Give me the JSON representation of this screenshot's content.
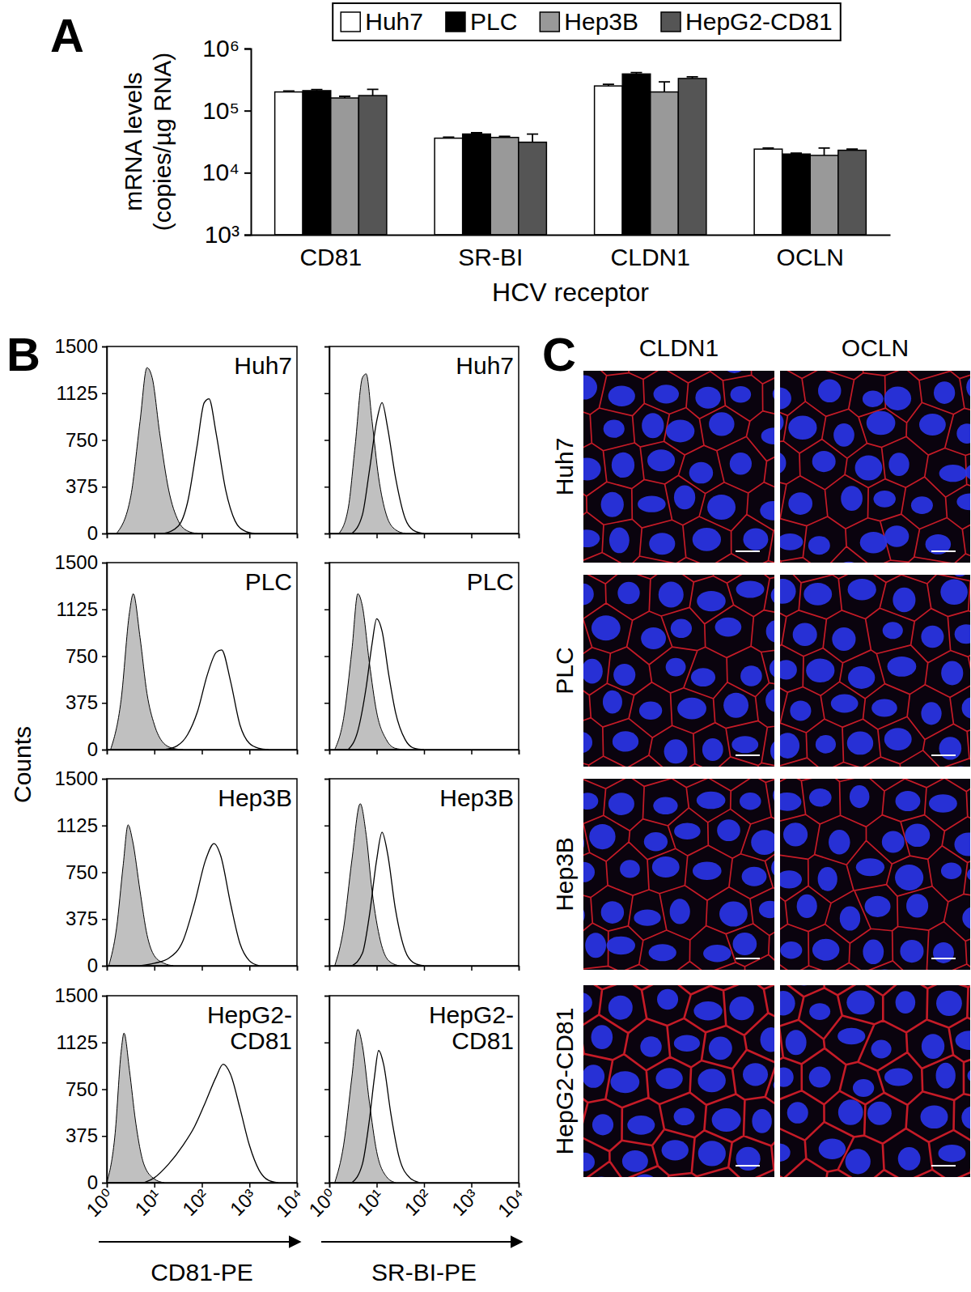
{
  "chart_data": [
    {
      "type": "bar",
      "log": "y",
      "legend": "top",
      "x_label": "HCV receptor",
      "y_label": [
        "mRNA levels",
        "(copies/µg RNA)"
      ],
      "categories": [
        "CD81",
        "SR-BI",
        "CLDN1",
        "OCLN"
      ],
      "series": [
        {
          "name": "Huh7",
          "color": "#ffffff",
          "values": [
            200000,
            36000,
            250000,
            24000
          ],
          "errors": [
            8000,
            1500,
            15000,
            1000
          ]
        },
        {
          "name": "PLC",
          "color": "#000000",
          "values": [
            210000,
            42000,
            390000,
            20000
          ],
          "errors": [
            8000,
            2000,
            20000,
            600
          ]
        },
        {
          "name": "Hep3B",
          "color": "#999999",
          "values": [
            160000,
            37000,
            200000,
            19000
          ],
          "errors": [
            10000,
            1500,
            90000,
            6000
          ]
        },
        {
          "name": "HepG2-CD81",
          "color": "#555555",
          "values": [
            175000,
            31000,
            330000,
            23000
          ],
          "errors": [
            45000,
            11000,
            20000,
            1000
          ]
        }
      ],
      "ylim": [
        1000,
        1000000
      ],
      "yticks": [
        {
          "value": 1000,
          "label": "10³"
        },
        {
          "value": 10000,
          "label": "10⁴"
        },
        {
          "value": 100000,
          "label": "10⁵"
        },
        {
          "value": 1000000,
          "label": "10⁶"
        }
      ]
    },
    {
      "type": "line",
      "title": "Huh7",
      "log": "x",
      "tick_labels": "y",
      "xlim": [
        1,
        10000
      ],
      "xticks": [
        {
          "value": 1,
          "label": "10⁰"
        },
        {
          "value": 10,
          "label": "10¹"
        },
        {
          "value": 100,
          "label": "10²"
        },
        {
          "value": 1000,
          "label": "10³"
        },
        {
          "value": 10000,
          "label": "10⁴"
        }
      ],
      "ylim": [
        0,
        1500
      ],
      "yticks": [
        0,
        375,
        750,
        1125,
        1500
      ],
      "series": [
        {
          "type": "area",
          "color": "#c0c0c0",
          "x": [
            1.6,
            3.2,
            5,
            7,
            9,
            13,
            20,
            32,
            50,
            80
          ],
          "values": [
            0,
            300,
            900,
            1330,
            1250,
            800,
            350,
            100,
            20,
            0
          ]
        },
        {
          "type": "line",
          "color": "#000000",
          "x": [
            16,
            32,
            50,
            79,
            112,
            141,
            200,
            316,
            500,
            794,
            1259
          ],
          "values": [
            0,
            60,
            250,
            700,
            1050,
            1080,
            800,
            350,
            100,
            20,
            0
          ]
        }
      ]
    },
    {
      "type": "line",
      "title": "Huh7",
      "log": "x",
      "tick_labels": false,
      "xlim": [
        1,
        10000
      ],
      "xticks": [
        {
          "value": 1,
          "label": "10⁰"
        },
        {
          "value": 10,
          "label": "10¹"
        },
        {
          "value": 100,
          "label": "10²"
        },
        {
          "value": 1000,
          "label": "10³"
        },
        {
          "value": 10000,
          "label": "10⁴"
        }
      ],
      "ylim": [
        0,
        1500
      ],
      "yticks": [
        0,
        375,
        750,
        1125,
        1500
      ],
      "series": [
        {
          "type": "area",
          "color": "#c0c0c0",
          "x": [
            1.6,
            2.5,
            3.5,
            5,
            6,
            8,
            11,
            16,
            25,
            40
          ],
          "values": [
            0,
            200,
            700,
            1250,
            1280,
            900,
            450,
            150,
            30,
            0
          ]
        },
        {
          "type": "line",
          "color": "#000000",
          "x": [
            3,
            5,
            7,
            10,
            13,
            17,
            25,
            40,
            63,
            100
          ],
          "values": [
            0,
            150,
            500,
            900,
            1050,
            850,
            450,
            120,
            20,
            0
          ]
        }
      ]
    },
    {
      "type": "line",
      "title": "PLC",
      "log": "x",
      "tick_labels": "y",
      "xlim": [
        1,
        10000
      ],
      "xticks": [
        {
          "value": 1,
          "label": "10⁰"
        },
        {
          "value": 10,
          "label": "10¹"
        },
        {
          "value": 100,
          "label": "10²"
        },
        {
          "value": 1000,
          "label": "10³"
        },
        {
          "value": 10000,
          "label": "10⁴"
        }
      ],
      "ylim": [
        0,
        1500
      ],
      "yticks": [
        0,
        375,
        750,
        1125,
        1500
      ],
      "series": [
        {
          "type": "area",
          "color": "#c0c0c0",
          "x": [
            1.2,
            2,
            3,
            3.6,
            5,
            7,
            10,
            15,
            25,
            40
          ],
          "values": [
            0,
            400,
            1100,
            1250,
            900,
            450,
            200,
            60,
            10,
            0
          ]
        },
        {
          "type": "line",
          "color": "#000000",
          "x": [
            16,
            30,
            50,
            80,
            130,
            200,
            260,
            400,
            630,
            1000,
            1600,
            2500
          ],
          "values": [
            0,
            30,
            120,
            300,
            600,
            780,
            800,
            550,
            200,
            50,
            10,
            0
          ]
        }
      ]
    },
    {
      "type": "line",
      "title": "PLC",
      "log": "x",
      "tick_labels": false,
      "xlim": [
        1,
        10000
      ],
      "xticks": [
        {
          "value": 1,
          "label": "10⁰"
        },
        {
          "value": 10,
          "label": "10¹"
        },
        {
          "value": 100,
          "label": "10²"
        },
        {
          "value": 1000,
          "label": "10³"
        },
        {
          "value": 10000,
          "label": "10⁴"
        }
      ],
      "ylim": [
        0,
        1500
      ],
      "yticks": [
        0,
        375,
        750,
        1125,
        1500
      ],
      "series": [
        {
          "type": "area",
          "color": "#c0c0c0",
          "x": [
            1.3,
            2,
            3,
            4,
            5,
            7,
            10,
            16,
            25,
            40
          ],
          "values": [
            0,
            250,
            800,
            1250,
            1150,
            700,
            300,
            80,
            10,
            0
          ]
        },
        {
          "type": "line",
          "color": "#000000",
          "x": [
            2.5,
            4,
            6,
            8,
            10,
            13,
            18,
            25,
            40,
            63,
            100
          ],
          "values": [
            0,
            150,
            500,
            850,
            1050,
            950,
            600,
            300,
            80,
            10,
            0
          ]
        }
      ]
    },
    {
      "type": "line",
      "title": "Hep3B",
      "log": "x",
      "tick_labels": "y",
      "xlim": [
        1,
        10000
      ],
      "xticks": [
        {
          "value": 1,
          "label": "10⁰"
        },
        {
          "value": 10,
          "label": "10¹"
        },
        {
          "value": 100,
          "label": "10²"
        },
        {
          "value": 1000,
          "label": "10³"
        },
        {
          "value": 10000,
          "label": "10⁴"
        }
      ],
      "ylim": [
        0,
        1500
      ],
      "yticks": [
        0,
        375,
        750,
        1125,
        1500
      ],
      "series": [
        {
          "type": "area",
          "color": "#c0c0c0",
          "x": [
            1.1,
            1.6,
            2.2,
            2.8,
            3.5,
            5,
            7,
            10,
            16,
            25
          ],
          "values": [
            0,
            300,
            800,
            1130,
            1000,
            600,
            250,
            80,
            20,
            0
          ]
        },
        {
          "type": "line",
          "color": "#000000",
          "x": [
            5,
            10,
            20,
            40,
            70,
            120,
            180,
            250,
            400,
            630,
            1000,
            1600
          ],
          "values": [
            0,
            20,
            60,
            200,
            500,
            850,
            980,
            880,
            500,
            180,
            40,
            0
          ]
        }
      ]
    },
    {
      "type": "line",
      "title": "Hep3B",
      "log": "x",
      "tick_labels": false,
      "xlim": [
        1,
        10000
      ],
      "xticks": [
        {
          "value": 1,
          "label": "10⁰"
        },
        {
          "value": 10,
          "label": "10¹"
        },
        {
          "value": 100,
          "label": "10²"
        },
        {
          "value": 1000,
          "label": "10³"
        },
        {
          "value": 10000,
          "label": "10⁴"
        }
      ],
      "ylim": [
        0,
        1500
      ],
      "yticks": [
        0,
        375,
        750,
        1125,
        1500
      ],
      "series": [
        {
          "type": "area",
          "color": "#c0c0c0",
          "x": [
            1.3,
            2,
            3,
            4.5,
            6,
            8,
            12,
            18,
            30
          ],
          "values": [
            0,
            300,
            850,
            1300,
            1050,
            600,
            200,
            40,
            0
          ]
        },
        {
          "type": "line",
          "color": "#000000",
          "x": [
            3,
            5,
            7,
            10,
            13,
            17,
            25,
            40,
            63,
            100
          ],
          "values": [
            0,
            100,
            400,
            850,
            1070,
            900,
            450,
            120,
            20,
            0
          ]
        }
      ]
    },
    {
      "type": "line",
      "title": "HepG2-CD81",
      "log": "x",
      "tick_labels": true,
      "x_label": "CD81-PE",
      "xlim": [
        1,
        10000
      ],
      "xticks": [
        {
          "value": 1,
          "label": "10⁰"
        },
        {
          "value": 10,
          "label": "10¹"
        },
        {
          "value": 100,
          "label": "10²"
        },
        {
          "value": 1000,
          "label": "10³"
        },
        {
          "value": 10000,
          "label": "10⁴"
        }
      ],
      "ylim": [
        0,
        1500
      ],
      "yticks": [
        0,
        375,
        750,
        1125,
        1500
      ],
      "series": [
        {
          "type": "area",
          "color": "#c0c0c0",
          "x": [
            1,
            1.5,
            2,
            2.3,
            3,
            4,
            6,
            10,
            16
          ],
          "values": [
            0,
            400,
            1050,
            1200,
            900,
            500,
            150,
            30,
            0
          ]
        },
        {
          "type": "line",
          "color": "#000000",
          "x": [
            6,
            10,
            20,
            40,
            70,
            120,
            200,
            280,
            400,
            630,
            1000,
            1600,
            2500,
            4000
          ],
          "values": [
            0,
            40,
            150,
            300,
            450,
            650,
            850,
            950,
            870,
            600,
            300,
            100,
            20,
            0
          ]
        }
      ]
    },
    {
      "type": "line",
      "title": "HepG2-CD81",
      "log": "x",
      "tick_labels": "x",
      "x_label": "SR-BI-PE",
      "xlim": [
        1,
        10000
      ],
      "xticks": [
        {
          "value": 1,
          "label": "10⁰"
        },
        {
          "value": 10,
          "label": "10¹"
        },
        {
          "value": 100,
          "label": "10²"
        },
        {
          "value": 1000,
          "label": "10³"
        },
        {
          "value": 10000,
          "label": "10⁴"
        }
      ],
      "ylim": [
        0,
        1500
      ],
      "yticks": [
        0,
        375,
        750,
        1125,
        1500
      ],
      "series": [
        {
          "type": "area",
          "color": "#c0c0c0",
          "x": [
            1.3,
            2,
            3,
            4,
            5,
            7,
            10,
            16,
            25
          ],
          "values": [
            0,
            300,
            850,
            1230,
            1100,
            650,
            250,
            50,
            0
          ]
        },
        {
          "type": "line",
          "color": "#000000",
          "x": [
            3,
            5,
            7,
            9,
            11,
            14,
            20,
            30,
            50,
            80
          ],
          "values": [
            0,
            150,
            500,
            850,
            1060,
            950,
            550,
            200,
            40,
            0
          ]
        }
      ]
    }
  ],
  "panels": {
    "labels": [
      "A",
      "B",
      "C"
    ],
    "counts_label": "Counts",
    "microscopy": {
      "columns": [
        "CLDN1",
        "OCLN"
      ],
      "rows": [
        "Huh7",
        "PLC",
        "Hep3B",
        "HepG2-CD81"
      ]
    }
  }
}
